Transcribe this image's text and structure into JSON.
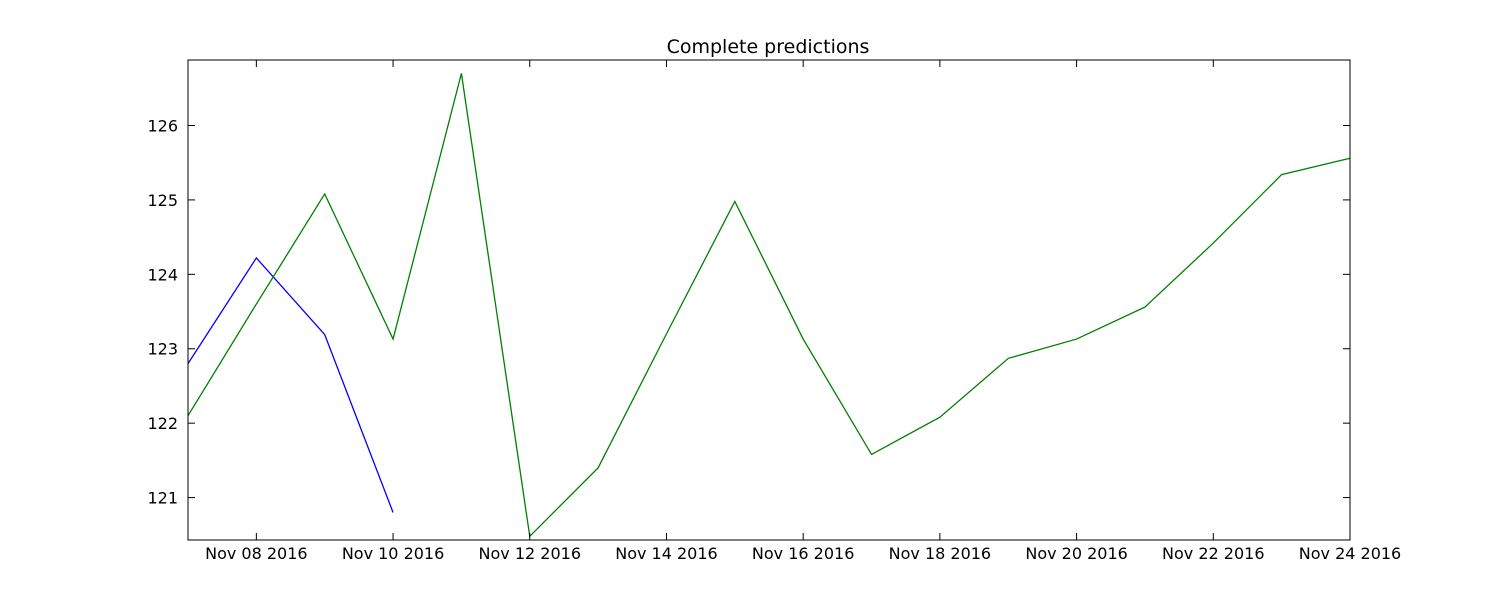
{
  "chart_data": {
    "type": "line",
    "title": "Complete predictions",
    "xlabel": "",
    "ylabel": "",
    "x_type": "date",
    "xlim": [
      "2016-11-07",
      "2016-11-24"
    ],
    "ylim": [
      120.43,
      126.88
    ],
    "x_ticks": [
      "2016-11-08",
      "2016-11-10",
      "2016-11-12",
      "2016-11-14",
      "2016-11-16",
      "2016-11-18",
      "2016-11-20",
      "2016-11-22",
      "2016-11-24"
    ],
    "x_tick_labels": [
      "Nov 08 2016",
      "Nov 10 2016",
      "Nov 12 2016",
      "Nov 14 2016",
      "Nov 16 2016",
      "Nov 18 2016",
      "Nov 20 2016",
      "Nov 22 2016",
      "Nov 24 2016"
    ],
    "y_ticks": [
      121,
      122,
      123,
      124,
      125,
      126
    ],
    "y_tick_labels": [
      "121",
      "122",
      "123",
      "124",
      "125",
      "126"
    ],
    "grid": false,
    "legend": "none",
    "series": [
      {
        "color": "#0000ff",
        "x": [
          "2016-11-07",
          "2016-11-08",
          "2016-11-09",
          "2016-11-10"
        ],
        "values": [
          122.8,
          124.22,
          123.19,
          120.8
        ]
      },
      {
        "color": "#008000",
        "x": [
          "2016-11-07",
          "2016-11-08",
          "2016-11-09",
          "2016-11-10",
          "2016-11-11",
          "2016-11-12",
          "2016-11-13",
          "2016-11-14",
          "2016-11-15",
          "2016-11-16",
          "2016-11-17",
          "2016-11-18",
          "2016-11-19",
          "2016-11-20",
          "2016-11-21",
          "2016-11-22",
          "2016-11-23",
          "2016-11-24"
        ],
        "values": [
          122.1,
          123.6,
          125.08,
          123.13,
          126.7,
          120.48,
          121.4,
          123.2,
          124.98,
          123.13,
          121.58,
          122.08,
          122.87,
          123.13,
          123.56,
          124.42,
          125.34,
          125.56
        ]
      }
    ]
  }
}
